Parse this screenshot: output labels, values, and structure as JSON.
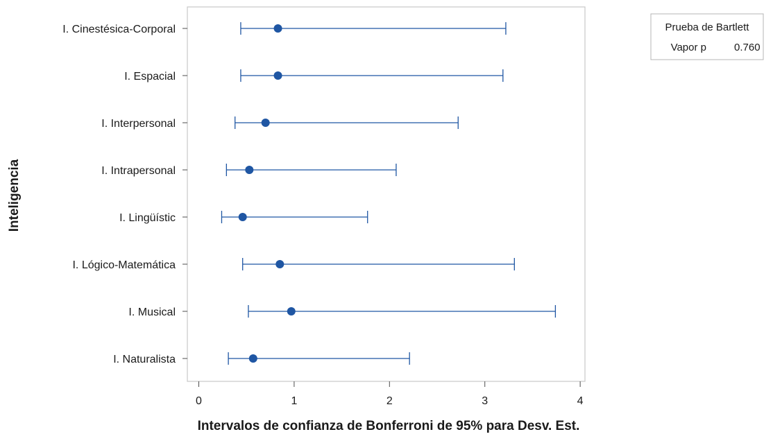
{
  "chart_data": {
    "type": "interval",
    "xlabel": "Intervalos de confianza de Bonferroni de 95% para Desv. Est.",
    "ylabel": "Inteligencia",
    "xlim": [
      -0.12,
      4.05
    ],
    "xticks": [
      "0",
      "1",
      "2",
      "3",
      "4"
    ],
    "categories": [
      "I. Cinestésica-Corporal",
      "I. Espacial",
      "I. Interpersonal",
      "I. Intrapersonal",
      "I. Lingüístic",
      "I. Lógico-Matemática",
      "I. Musical",
      "I. Naturalista"
    ],
    "estimates": [
      0.83,
      0.83,
      0.7,
      0.53,
      0.46,
      0.85,
      0.97,
      0.57
    ],
    "lower": [
      0.44,
      0.44,
      0.38,
      0.29,
      0.24,
      0.46,
      0.52,
      0.31
    ],
    "upper": [
      3.22,
      3.19,
      2.72,
      2.07,
      1.77,
      3.31,
      3.74,
      2.21
    ],
    "grid": false,
    "color": "#1f56a3",
    "legend_box": {
      "title": "Prueba de Bartlett",
      "label": "Vapor p",
      "value": "0.760",
      "placement": "top-right"
    }
  }
}
